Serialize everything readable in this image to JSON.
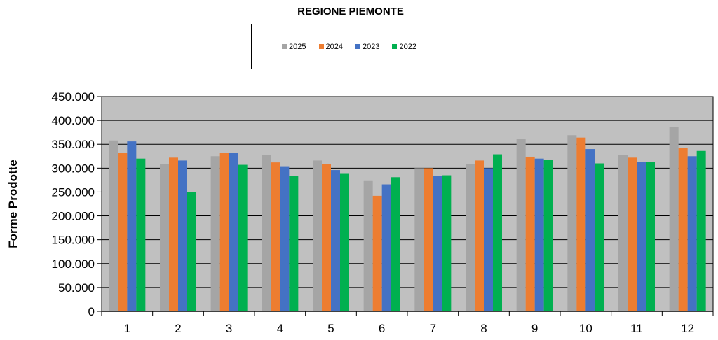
{
  "chart_data": {
    "type": "bar",
    "title": "REGIONE PIEMONTE",
    "xlabel": "",
    "ylabel": "Forme Prodotte",
    "categories": [
      "1",
      "2",
      "3",
      "4",
      "5",
      "6",
      "7",
      "8",
      "9",
      "10",
      "11",
      "12"
    ],
    "y_ticks": [
      "0",
      "50.000",
      "100.000",
      "150.000",
      "200.000",
      "250.000",
      "300.000",
      "350.000",
      "400.000",
      "450.000"
    ],
    "ylim": [
      0,
      450000
    ],
    "grid": true,
    "legend_position": "top-center",
    "series": [
      {
        "name": "2025",
        "color": "#a5a5a5",
        "values": [
          358000,
          308000,
          325000,
          328000,
          316000,
          273000,
          300000,
          308000,
          361000,
          369000,
          328000,
          386000
        ]
      },
      {
        "name": "2024",
        "color": "#ed7d31",
        "values": [
          332000,
          322000,
          332000,
          312000,
          309000,
          242000,
          300000,
          316000,
          324000,
          364000,
          322000,
          342000
        ]
      },
      {
        "name": "2023",
        "color": "#4472c4",
        "values": [
          356000,
          316000,
          332000,
          304000,
          296000,
          266000,
          283000,
          300000,
          320000,
          340000,
          313000,
          325000
        ]
      },
      {
        "name": "2022",
        "color": "#00b050",
        "values": [
          320000,
          250000,
          307000,
          284000,
          288000,
          281000,
          285000,
          329000,
          318000,
          310000,
          313000,
          336000
        ]
      }
    ],
    "colors": {
      "plot_background": "#c0c0c0",
      "gridline": "#000000"
    }
  }
}
